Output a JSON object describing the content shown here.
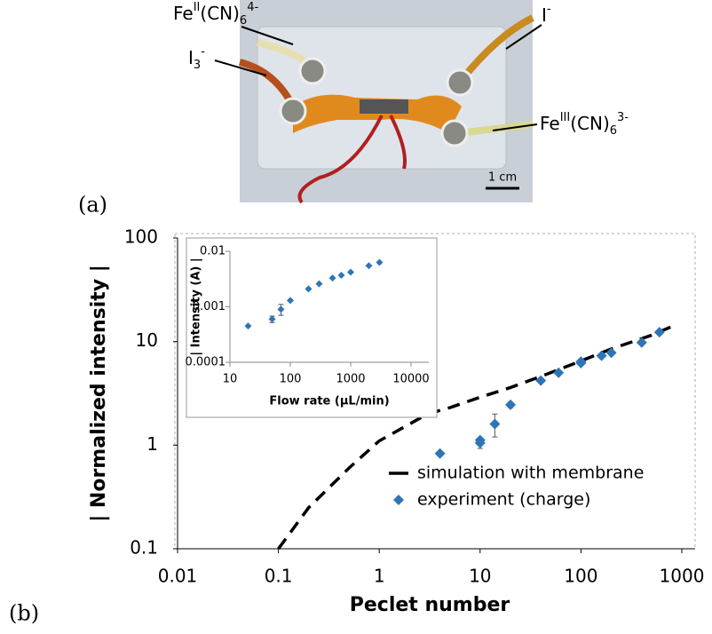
{
  "photo": {
    "labels": [
      [
        {
          "text": "Fe"
        },
        {
          "text": "II",
          "pos": "sup"
        },
        {
          "text": "(CN)"
        },
        {
          "text": "6",
          "pos": "sub"
        },
        {
          "text": "4-",
          "pos": "sup"
        }
      ],
      [
        {
          "text": "I"
        },
        {
          "text": "3",
          "pos": "sub"
        },
        {
          "text": "-",
          "pos": "sup"
        }
      ],
      [
        {
          "text": "I"
        },
        {
          "text": "-",
          "pos": "sup"
        }
      ],
      [
        {
          "text": "Fe"
        },
        {
          "text": "III",
          "pos": "sup"
        },
        {
          "text": "(CN)"
        },
        {
          "text": "6",
          "pos": "sub"
        },
        {
          "text": "3-",
          "pos": "sup"
        }
      ]
    ],
    "scale_bar": "1 cm"
  },
  "panel_labels": [
    "(a)",
    "(b)"
  ],
  "chart_data": [
    {
      "type": "scatter",
      "xlabel": "Peclet number",
      "ylabel": "| Normalized intensity |",
      "log_x": true,
      "log_y": true,
      "xlim": [
        0.01,
        1000
      ],
      "ylim": [
        0.1,
        100
      ],
      "xticks": [
        0.01,
        0.1,
        1,
        10,
        100,
        1000
      ],
      "yticks": [
        0.1,
        1,
        10,
        100
      ],
      "legend": "lower right",
      "series": [
        {
          "name": "simulation with membrane",
          "color": "#000000",
          "style": "dashed",
          "x": [
            0.1,
            0.2,
            0.5,
            1,
            2,
            3,
            5,
            10,
            20,
            50,
            100,
            200,
            500,
            800
          ],
          "values": [
            0.1,
            0.25,
            0.6,
            1.1,
            1.6,
            2.0,
            2.3,
            2.9,
            3.6,
            5,
            6.5,
            8.5,
            11.5,
            14
          ]
        },
        {
          "name": "experiment (charge)",
          "color": "#2e75b6",
          "style": "diamond",
          "x": [
            4,
            10,
            10,
            14,
            20,
            40,
            60,
            100,
            100,
            160,
            200,
            400,
            600
          ],
          "values": [
            0.83,
            1.05,
            1.12,
            1.6,
            2.45,
            4.2,
            5.0,
            6.2,
            6.4,
            7.3,
            7.8,
            9.8,
            12.3
          ],
          "errors": [
            null,
            0.12,
            null,
            0.4,
            0.15,
            null,
            null,
            0.3,
            null,
            null,
            null,
            null,
            null
          ]
        }
      ]
    },
    {
      "type": "scatter",
      "xlabel": "Flow rate (µL/min)",
      "ylabel": "| Intensity (A) |",
      "log_x": true,
      "log_y": true,
      "xlim": [
        10,
        10000
      ],
      "ylim": [
        0.0001,
        0.01
      ],
      "xticks": [
        10,
        100,
        1000,
        10000
      ],
      "yticks": [
        0.0001,
        0.001,
        0.01
      ],
      "series": [
        {
          "color": "#2e75b6",
          "style": "diamond",
          "x": [
            20,
            50,
            70,
            100,
            200,
            300,
            500,
            700,
            1000,
            2000,
            3000
          ],
          "values": [
            0.00045,
            0.0006,
            0.0009,
            0.0013,
            0.0021,
            0.0026,
            0.0033,
            0.0037,
            0.0042,
            0.0055,
            0.0063
          ],
          "errors": [
            null,
            8e-05,
            0.0002,
            null,
            null,
            null,
            null,
            null,
            null,
            null,
            null
          ]
        }
      ]
    }
  ]
}
